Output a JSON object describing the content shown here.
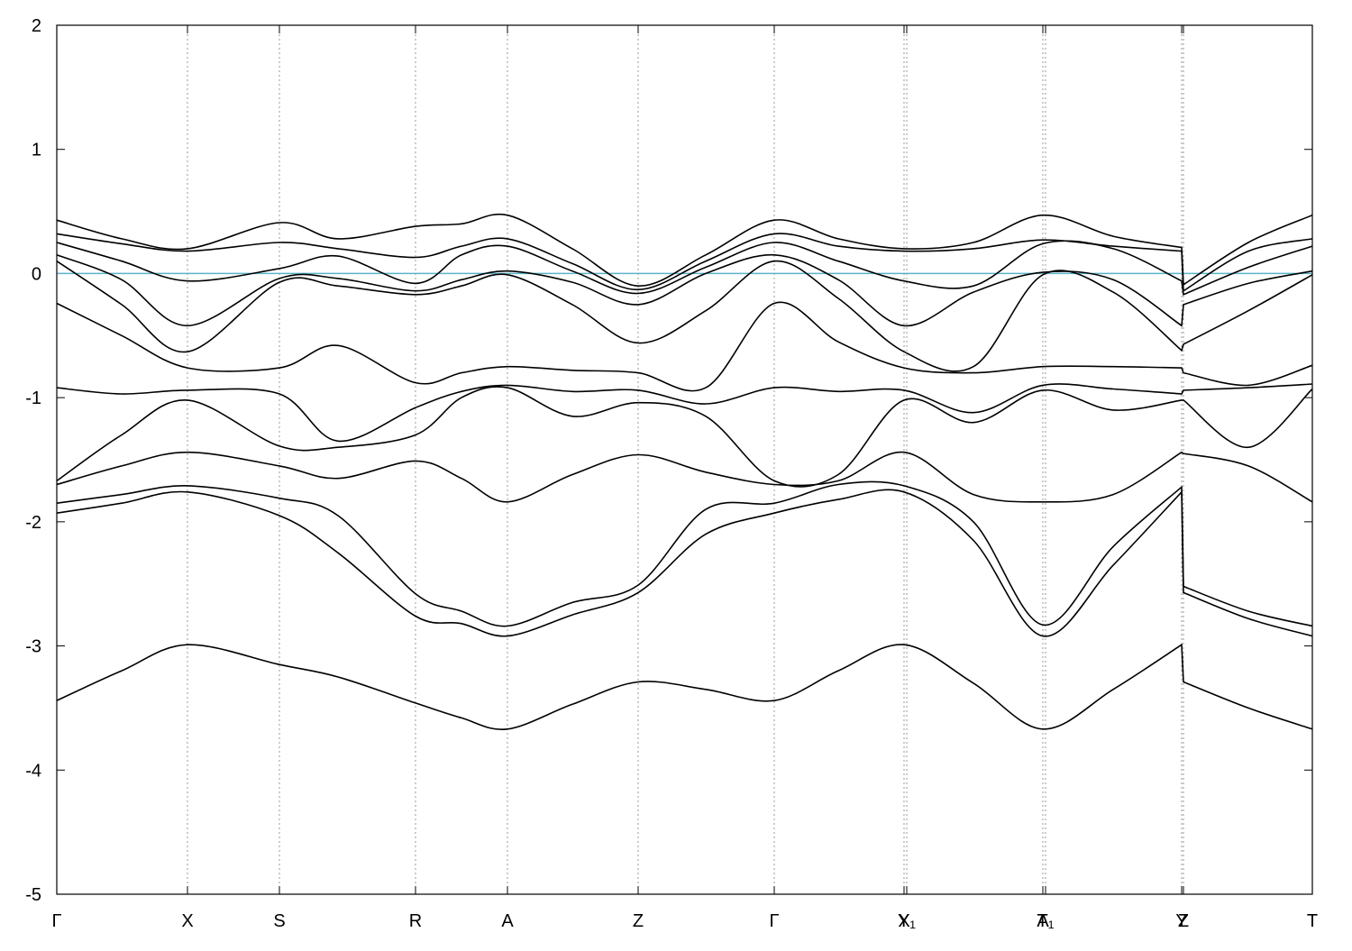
{
  "chart_data": {
    "type": "line",
    "color": "#000000",
    "grid": true,
    "xlim": [
      0,
      13.93
    ],
    "ylim": [
      -5,
      2
    ],
    "yticks": [
      -5,
      -4,
      -3,
      -2,
      -1,
      0,
      1,
      2
    ],
    "xticks": [
      {
        "value": 0,
        "label": "Γ"
      },
      {
        "value": 1.45,
        "label": "X"
      },
      {
        "value": 2.47,
        "label": "S"
      },
      {
        "value": 3.98,
        "label": "R"
      },
      {
        "value": 5.0,
        "label": "A"
      },
      {
        "value": 6.45,
        "label": "Z"
      },
      {
        "value": 7.96,
        "label": "Γ"
      },
      {
        "value": 9.4,
        "label": "X"
      },
      {
        "value": 9.43,
        "label": "Y₁"
      },
      {
        "value": 10.94,
        "label": "A"
      },
      {
        "value": 10.97,
        "label": "T₁"
      },
      {
        "value": 12.48,
        "label": "Y"
      },
      {
        "value": 12.5,
        "label": "Z"
      },
      {
        "value": 13.93,
        "label": "T"
      }
    ],
    "reference_line": {
      "value": 0,
      "color": "#5ab4c8"
    },
    "x": [
      0,
      0.72,
      1.45,
      2.47,
      3.12,
      3.98,
      4.49,
      5.0,
      5.72,
      6.45,
      7.2,
      7.96,
      8.67,
      9.4,
      10.17,
      10.94,
      11.72,
      12.48,
      12.5,
      13.22,
      13.93
    ],
    "series": [
      {
        "values": [
          0.43,
          0.28,
          0.2,
          0.41,
          0.28,
          0.38,
          0.4,
          0.47,
          0.2,
          -0.1,
          0.15,
          0.43,
          0.28,
          0.2,
          0.25,
          0.47,
          0.3,
          0.21,
          -0.09,
          0.25,
          0.47
        ]
      },
      {
        "values": [
          0.32,
          0.24,
          0.18,
          0.25,
          0.2,
          0.13,
          0.22,
          0.28,
          0.08,
          -0.13,
          0.1,
          0.32,
          0.22,
          0.18,
          0.2,
          0.27,
          0.22,
          0.18,
          -0.14,
          0.18,
          0.28
        ]
      },
      {
        "values": [
          0.25,
          0.1,
          -0.06,
          0.04,
          0.14,
          -0.08,
          0.15,
          0.22,
          0.02,
          -0.16,
          0.05,
          0.25,
          0.1,
          -0.06,
          -0.1,
          0.24,
          0.2,
          -0.06,
          -0.17,
          0.05,
          0.22
        ]
      },
      {
        "values": [
          0.15,
          -0.05,
          -0.42,
          -0.04,
          -0.04,
          -0.14,
          -0.05,
          0.02,
          -0.07,
          -0.25,
          0.0,
          0.15,
          -0.05,
          -0.42,
          -0.15,
          0.01,
          -0.05,
          -0.42,
          -0.25,
          -0.08,
          0.02
        ]
      },
      {
        "values": [
          0.1,
          -0.25,
          -0.63,
          -0.07,
          -0.1,
          -0.17,
          -0.1,
          -0.01,
          -0.25,
          -0.56,
          -0.3,
          0.1,
          -0.2,
          -0.63,
          -0.75,
          -0.01,
          -0.15,
          -0.62,
          -0.57,
          -0.3,
          -0.01
        ]
      },
      {
        "values": [
          -0.24,
          -0.5,
          -0.76,
          -0.76,
          -0.58,
          -0.88,
          -0.8,
          -0.75,
          -0.78,
          -0.8,
          -0.92,
          -0.24,
          -0.55,
          -0.76,
          -0.8,
          -0.75,
          -0.75,
          -0.76,
          -0.8,
          -0.9,
          -0.74
        ]
      },
      {
        "values": [
          -0.92,
          -0.97,
          -0.94,
          -0.97,
          -1.35,
          -1.08,
          -0.95,
          -0.9,
          -0.95,
          -0.94,
          -1.05,
          -0.92,
          -0.95,
          -0.94,
          -1.12,
          -0.9,
          -0.93,
          -0.97,
          -0.94,
          -0.92,
          -0.89
        ]
      },
      {
        "values": [
          -1.67,
          -1.3,
          -1.02,
          -1.39,
          -1.4,
          -1.3,
          -1.0,
          -0.92,
          -1.15,
          -1.04,
          -1.15,
          -1.67,
          -1.62,
          -1.02,
          -1.2,
          -0.94,
          -1.1,
          -1.02,
          -1.02,
          -1.4,
          -0.93
        ]
      },
      {
        "values": [
          -1.7,
          -1.55,
          -1.44,
          -1.55,
          -1.65,
          -1.51,
          -1.65,
          -1.84,
          -1.62,
          -1.46,
          -1.6,
          -1.7,
          -1.67,
          -1.44,
          -1.78,
          -1.84,
          -1.78,
          -1.44,
          -1.45,
          -1.55,
          -1.84
        ]
      },
      {
        "values": [
          -1.85,
          -1.78,
          -1.71,
          -1.81,
          -1.95,
          -2.58,
          -2.72,
          -2.84,
          -2.65,
          -2.51,
          -1.9,
          -1.85,
          -1.7,
          -1.71,
          -2.0,
          -2.83,
          -2.2,
          -1.72,
          -2.52,
          -2.72,
          -2.84
        ]
      },
      {
        "values": [
          -1.93,
          -1.85,
          -1.76,
          -1.95,
          -2.25,
          -2.76,
          -2.82,
          -2.92,
          -2.75,
          -2.57,
          -2.1,
          -1.93,
          -1.82,
          -1.76,
          -2.15,
          -2.92,
          -2.35,
          -1.76,
          -2.57,
          -2.78,
          -2.92
        ]
      },
      {
        "values": [
          -3.44,
          -3.2,
          -2.99,
          -3.15,
          -3.25,
          -3.46,
          -3.58,
          -3.67,
          -3.47,
          -3.29,
          -3.35,
          -3.44,
          -3.2,
          -2.99,
          -3.3,
          -3.67,
          -3.35,
          -2.99,
          -3.29,
          -3.5,
          -3.67
        ]
      }
    ]
  }
}
